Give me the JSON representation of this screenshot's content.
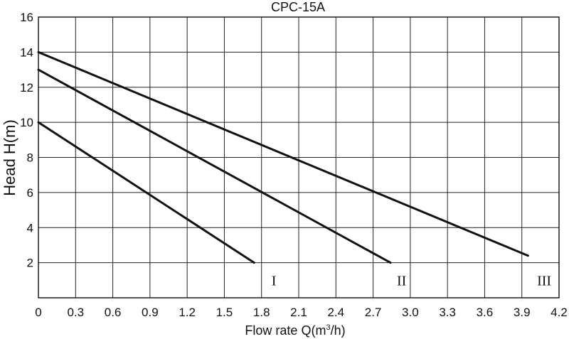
{
  "chart_data": {
    "type": "line",
    "title": "CPC-15A",
    "xlabel": "Flow rate Q(m",
    "xlabel_sup": "3",
    "xlabel_end": "/h)",
    "ylabel": "Head H(m)",
    "xlim": [
      0,
      4.2
    ],
    "ylim": [
      0,
      16
    ],
    "x_ticks": [
      "0",
      "0.3",
      "0.6",
      "0.9",
      "1.2",
      "1.5",
      "1.8",
      "2.1",
      "2.4",
      "2.7",
      "3.0",
      "3.3",
      "3.6",
      "3.9",
      "4.2"
    ],
    "y_ticks": [
      "2",
      "4",
      "6",
      "8",
      "10",
      "12",
      "14",
      "16"
    ],
    "x_grid_step": 0.3,
    "y_grid_step": 2,
    "grid": true,
    "series": [
      {
        "name": "I",
        "x": [
          0,
          1.74
        ],
        "y": [
          10,
          2
        ]
      },
      {
        "name": "II",
        "x": [
          0,
          2.84
        ],
        "y": [
          13,
          2
        ]
      },
      {
        "name": "III",
        "x": [
          0,
          3.95
        ],
        "y": [
          14,
          2.4
        ]
      }
    ],
    "curve_labels": [
      {
        "text": "I",
        "x": 1.9,
        "y": 1.0
      },
      {
        "text": "II",
        "x": 2.93,
        "y": 1.0
      },
      {
        "text": "III",
        "x": 4.08,
        "y": 1.0
      }
    ]
  }
}
